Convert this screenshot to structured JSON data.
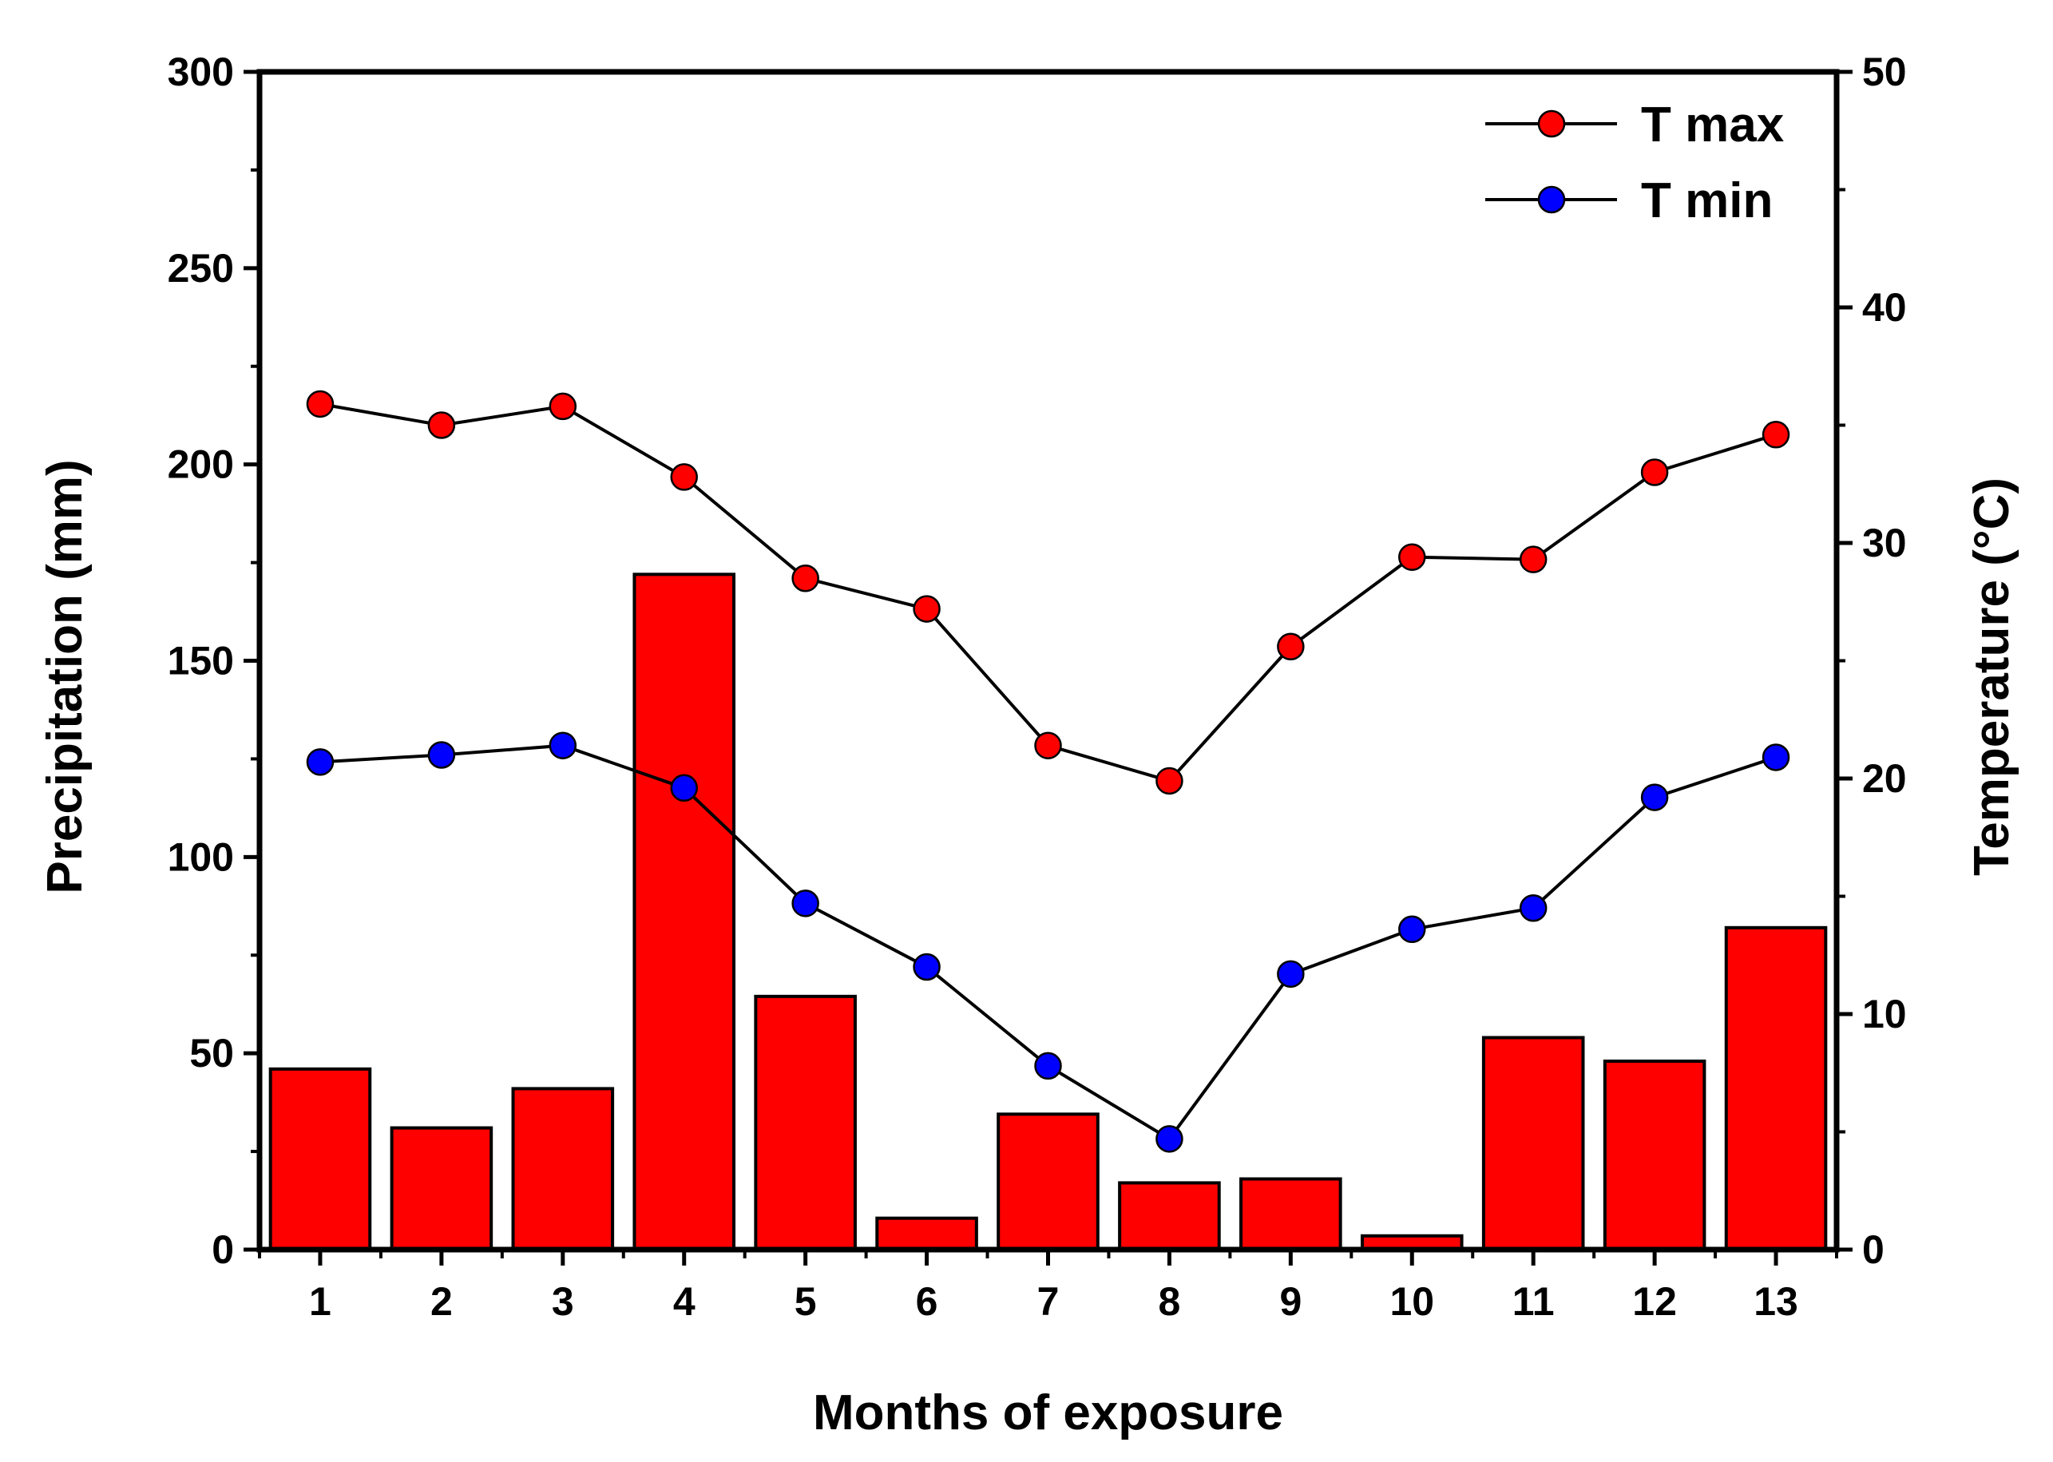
{
  "chart_data": {
    "type": "bar+line",
    "title": "",
    "xlabel": "Months of exposure",
    "ylabel_left": "Precipitation (mm)",
    "ylabel_right": "Temperature (°C)",
    "categories": [
      "1",
      "2",
      "3",
      "4",
      "5",
      "6",
      "7",
      "8",
      "9",
      "10",
      "11",
      "12",
      "13"
    ],
    "y_left_lim": [
      0,
      300
    ],
    "y_left_ticks": [
      "0",
      "50",
      "100",
      "150",
      "200",
      "250",
      "300"
    ],
    "y_right_lim": [
      0,
      50
    ],
    "y_right_ticks": [
      "0",
      "10",
      "20",
      "30",
      "40",
      "50"
    ],
    "grid": false,
    "legend_position": "top-right",
    "bars": {
      "name": "Precipitation",
      "color": "#ff0000",
      "values": [
        46,
        31,
        41,
        172,
        64.5,
        8,
        34.5,
        17,
        18,
        3.5,
        54,
        48,
        82
      ]
    },
    "series": [
      {
        "name": "T max",
        "color": "#ff0000",
        "values": [
          35.9,
          35.0,
          35.8,
          32.8,
          28.5,
          27.2,
          21.4,
          19.9,
          25.6,
          29.4,
          29.3,
          33.0,
          34.6
        ]
      },
      {
        "name": "T min",
        "color": "#0000ff",
        "values": [
          20.7,
          21.0,
          21.4,
          19.6,
          14.7,
          12.0,
          7.8,
          4.7,
          11.7,
          13.6,
          14.5,
          19.2,
          20.9
        ]
      }
    ]
  }
}
